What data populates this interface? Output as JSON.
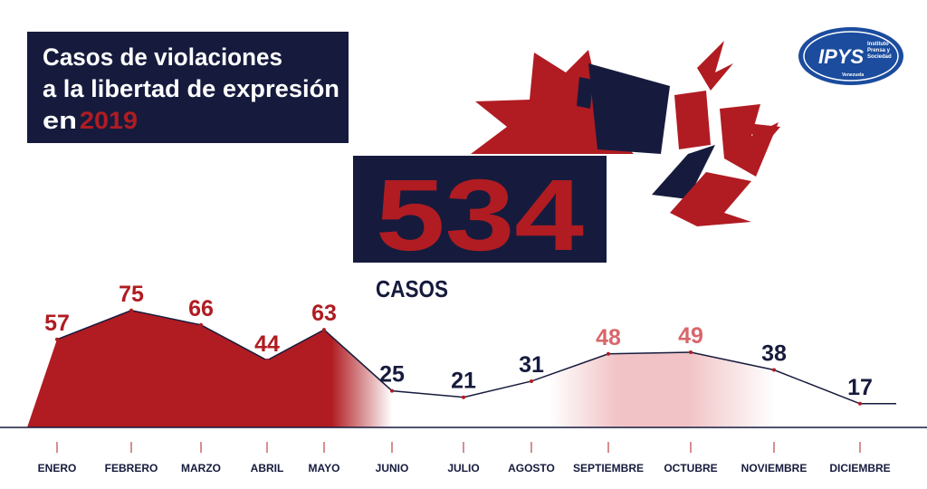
{
  "logo": {
    "mark": "IPYS",
    "name_lines": [
      "Instituto",
      "Prensa y",
      "Sociedad"
    ],
    "country": "Venezuela"
  },
  "chart_data": {
    "type": "line",
    "title_lines": [
      "Casos de violaciones",
      "a la libertad de expresión",
      "en"
    ],
    "title_highlight": "2019",
    "total": 534,
    "total_label": "CASOS",
    "categories": [
      "ENERO",
      "FEBRERO",
      "MARZO",
      "ABRIL",
      "MAYO",
      "JUNIO",
      "JULIO",
      "AGOSTO",
      "SEPTIEMBRE",
      "OCTUBRE",
      "NOVIEMBRE",
      "DICIEMBRE"
    ],
    "values": [
      57,
      75,
      66,
      44,
      63,
      25,
      21,
      31,
      48,
      49,
      38,
      17
    ],
    "color": "#161b3d",
    "accent_color": "#b01c22",
    "value_label_colors": [
      "#b01c22",
      "#b01c22",
      "#b01c22",
      "#b01c22",
      "#b01c22",
      "#161b3d",
      "#161b3d",
      "#161b3d",
      "#d9666b",
      "#d9666b",
      "#161b3d",
      "#161b3d"
    ]
  }
}
